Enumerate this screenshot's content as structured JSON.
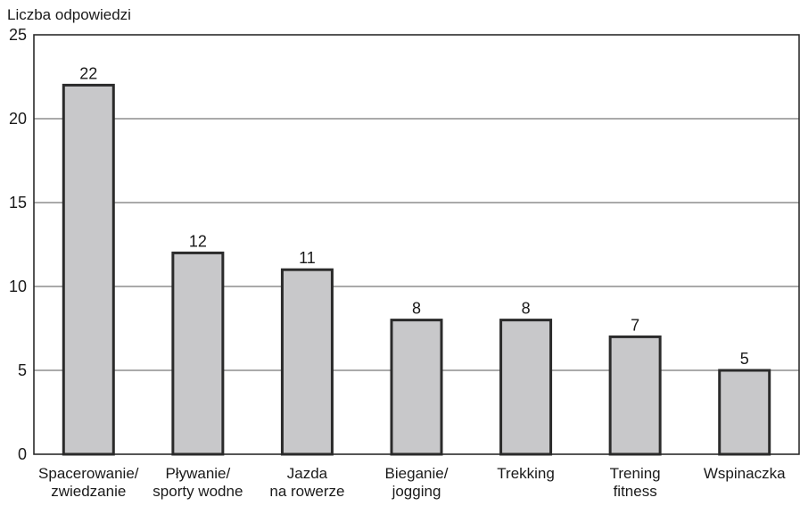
{
  "chart_data": {
    "type": "bar",
    "title": "",
    "xlabel": "",
    "ylabel": "Liczba odpowiedzi",
    "ylim": [
      0,
      25
    ],
    "yticks": [
      0,
      5,
      10,
      15,
      20,
      25
    ],
    "grid": true,
    "categories": [
      [
        "Spacerowanie/",
        "zwiedzanie"
      ],
      [
        "Pływanie/",
        "sporty wodne"
      ],
      [
        "Jazda",
        "na rowerze"
      ],
      [
        "Bieganie/",
        "jogging"
      ],
      [
        "Trekking"
      ],
      [
        "Trening",
        "fitness"
      ],
      [
        "Wspinaczka"
      ]
    ],
    "values": [
      22,
      12,
      11,
      8,
      8,
      7,
      5
    ],
    "data_labels": [
      "22",
      "12",
      "11",
      "8",
      "8",
      "7",
      "5"
    ]
  },
  "colors": {
    "bar_fill": "#c8c8ca",
    "bar_stroke": "#2b2b2b",
    "grid": "#555555",
    "axis": "#2b2b2b"
  }
}
